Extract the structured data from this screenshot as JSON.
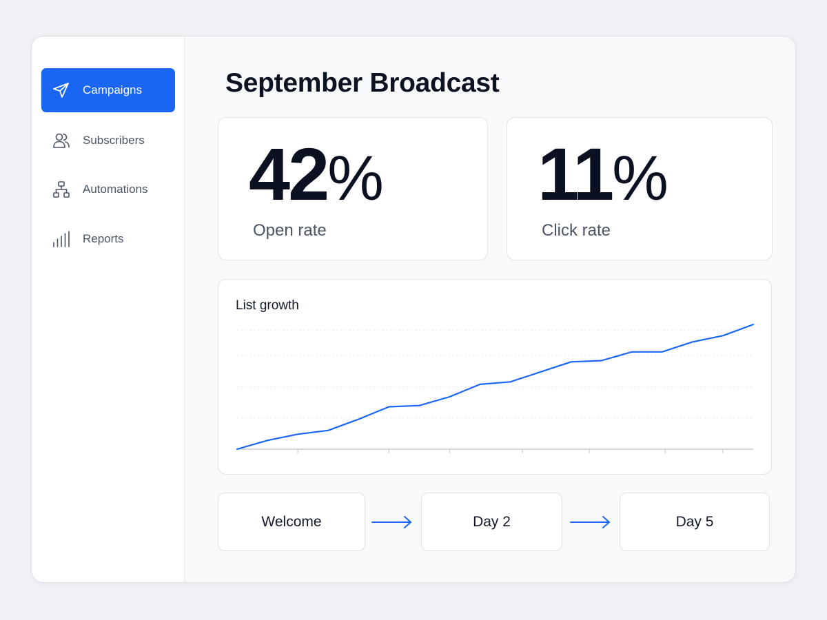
{
  "sidebar": {
    "items": [
      {
        "label": "Campaigns",
        "icon": "send-icon",
        "active": true
      },
      {
        "label": "Subscribers",
        "icon": "users-icon",
        "active": false
      },
      {
        "label": "Automations",
        "icon": "workflow-icon",
        "active": false
      },
      {
        "label": "Reports",
        "icon": "bar-chart-icon",
        "active": false
      }
    ]
  },
  "main": {
    "title": "September Broadcast",
    "stats": [
      {
        "value": "42",
        "unit": "%",
        "label": "Open rate"
      },
      {
        "value": "11",
        "unit": "%",
        "label": "Click rate"
      }
    ]
  },
  "chart_data": {
    "type": "line",
    "title": "List growth",
    "xlabel": "",
    "ylabel": "",
    "x": [
      0,
      1,
      2,
      3,
      4,
      5,
      6,
      7,
      8,
      9,
      10,
      11,
      12,
      13,
      14,
      15,
      16,
      17
    ],
    "series": [
      {
        "values": [
          0,
          7,
          12,
          15,
          24,
          34,
          35,
          42,
          52,
          54,
          62,
          70,
          71,
          78,
          78,
          86,
          91,
          100
        ]
      }
    ],
    "ylim": [
      0,
      100
    ],
    "grid": true,
    "line_color": "#1a66f2"
  },
  "flow": {
    "steps": [
      "Welcome",
      "Day 2",
      "Day 5"
    ]
  },
  "colors": {
    "accent": "#1a66f2"
  }
}
